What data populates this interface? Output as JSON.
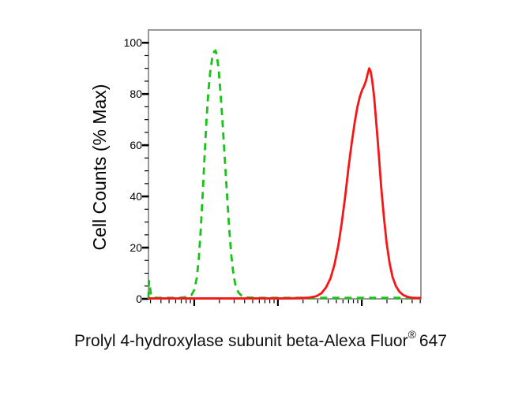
{
  "figure": {
    "background": "#ffffff"
  },
  "chart_data": {
    "type": "line",
    "subtype": "flow-cytometry-histogram-overlay",
    "title": "",
    "ylabel": "Cell Counts (% Max)",
    "xlabel": "Prolyl 4-hydroxylase subunit beta-Alexa Fluor® 647",
    "xlabel_parts": {
      "main": "Prolyl 4-hydroxylase subunit beta-Alexa Fluor",
      "sup": "®",
      "suffix": "647"
    },
    "grid": false,
    "legend": null,
    "frame_color": "#999999",
    "tick_color": "#000000",
    "y_axis": {
      "ticks": [
        0,
        20,
        40,
        60,
        80,
        100
      ],
      "minor_step": 5,
      "range": [
        0,
        105
      ],
      "label": "Cell Counts (% Max)"
    },
    "x_axis": {
      "scale": "log",
      "tick_labels_visible": false,
      "major_tick_positions_rel": [
        0.168,
        0.475,
        0.783
      ],
      "decade_width_rel": 0.307
    },
    "series": [
      {
        "name": "green-dashed-curve",
        "color": "#15c415",
        "line_style": "dashed",
        "peak_value_pct_max": 97,
        "peak_position_rel": 0.246,
        "points": [
          [
            0.0,
            0
          ],
          [
            0.001,
            4
          ],
          [
            0.002,
            7
          ],
          [
            0.005,
            5
          ],
          [
            0.009,
            2
          ],
          [
            0.014,
            0.8
          ],
          [
            0.03,
            0.4
          ],
          [
            0.06,
            0.4
          ],
          [
            0.09,
            0.4
          ],
          [
            0.12,
            0.5
          ],
          [
            0.145,
            0.8
          ],
          [
            0.158,
            1.5
          ],
          [
            0.168,
            3.5
          ],
          [
            0.177,
            8
          ],
          [
            0.185,
            16
          ],
          [
            0.192,
            27
          ],
          [
            0.199,
            41
          ],
          [
            0.206,
            56
          ],
          [
            0.213,
            70
          ],
          [
            0.22,
            81
          ],
          [
            0.227,
            89
          ],
          [
            0.234,
            94
          ],
          [
            0.241,
            96.5
          ],
          [
            0.246,
            97
          ],
          [
            0.251,
            95
          ],
          [
            0.257,
            90
          ],
          [
            0.264,
            81
          ],
          [
            0.272,
            69
          ],
          [
            0.28,
            55
          ],
          [
            0.288,
            41
          ],
          [
            0.296,
            28
          ],
          [
            0.304,
            17
          ],
          [
            0.312,
            9.5
          ],
          [
            0.32,
            5
          ],
          [
            0.33,
            2.5
          ],
          [
            0.342,
            1.2
          ],
          [
            0.36,
            0.6
          ],
          [
            0.4,
            0.4
          ],
          [
            0.45,
            0.4
          ],
          [
            0.5,
            0.4
          ],
          [
            0.55,
            0.4
          ],
          [
            0.6,
            0.4
          ],
          [
            0.65,
            0.4
          ],
          [
            0.7,
            0.4
          ],
          [
            0.75,
            0.4
          ],
          [
            0.8,
            0.4
          ],
          [
            0.85,
            0.4
          ],
          [
            0.9,
            0.4
          ],
          [
            0.95,
            0.4
          ],
          [
            1.0,
            0.4
          ]
        ]
      },
      {
        "name": "red-solid-curve",
        "color": "#f91515",
        "line_style": "solid",
        "peak_value_pct_max": 90,
        "peak_position_rel": 0.81,
        "points": [
          [
            0.0,
            0.2
          ],
          [
            0.1,
            0.2
          ],
          [
            0.2,
            0.2
          ],
          [
            0.3,
            0.2
          ],
          [
            0.4,
            0.2
          ],
          [
            0.5,
            0.2
          ],
          [
            0.55,
            0.3
          ],
          [
            0.59,
            0.5
          ],
          [
            0.615,
            1
          ],
          [
            0.635,
            2.2
          ],
          [
            0.652,
            4.5
          ],
          [
            0.668,
            8
          ],
          [
            0.683,
            13.5
          ],
          [
            0.697,
            21
          ],
          [
            0.71,
            30
          ],
          [
            0.722,
            40
          ],
          [
            0.734,
            51
          ],
          [
            0.746,
            61
          ],
          [
            0.757,
            69
          ],
          [
            0.767,
            75
          ],
          [
            0.776,
            79
          ],
          [
            0.784,
            81.5
          ],
          [
            0.791,
            83
          ],
          [
            0.798,
            85
          ],
          [
            0.805,
            88
          ],
          [
            0.81,
            90
          ],
          [
            0.815,
            89
          ],
          [
            0.821,
            85.5
          ],
          [
            0.828,
            79
          ],
          [
            0.836,
            69
          ],
          [
            0.845,
            57
          ],
          [
            0.854,
            44
          ],
          [
            0.864,
            32
          ],
          [
            0.874,
            22
          ],
          [
            0.885,
            14
          ],
          [
            0.896,
            8.5
          ],
          [
            0.908,
            5
          ],
          [
            0.921,
            2.8
          ],
          [
            0.935,
            1.5
          ],
          [
            0.95,
            0.8
          ],
          [
            0.97,
            0.4
          ],
          [
            1.0,
            0.3
          ]
        ]
      }
    ]
  }
}
